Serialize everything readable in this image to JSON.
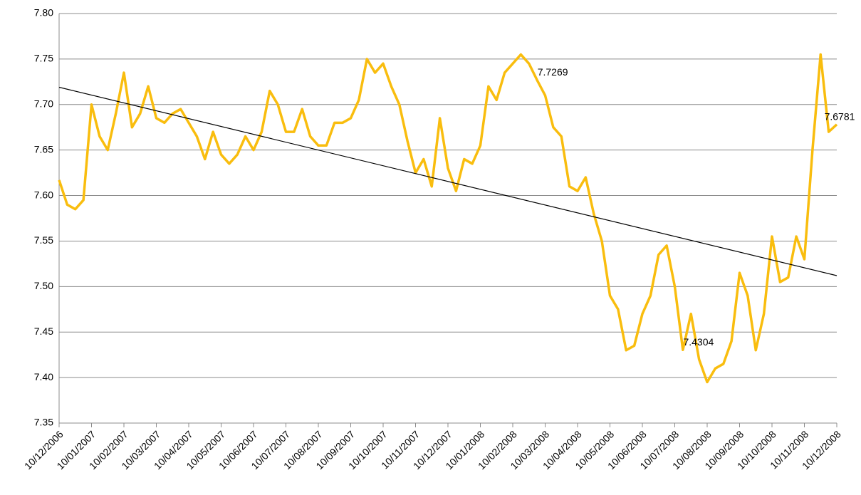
{
  "chart_data": {
    "type": "line",
    "categories": [
      "10/12/2006",
      null,
      null,
      null,
      "10/01/2007",
      null,
      null,
      null,
      "10/02/2007",
      null,
      null,
      null,
      "10/03/2007",
      null,
      null,
      null,
      "10/04/2007",
      null,
      null,
      null,
      "10/05/2007",
      null,
      null,
      null,
      "10/06/2007",
      null,
      null,
      null,
      "10/07/2007",
      null,
      null,
      null,
      "10/08/2007",
      null,
      null,
      null,
      "10/09/2007",
      null,
      null,
      null,
      "10/10/2007",
      null,
      null,
      null,
      "10/11/2007",
      null,
      null,
      null,
      "10/12/2007",
      null,
      null,
      null,
      "10/01/2008",
      null,
      null,
      null,
      "10/02/2008",
      null,
      null,
      null,
      "10/03/2008",
      null,
      null,
      null,
      "10/04/2008",
      null,
      null,
      null,
      "10/05/2008",
      null,
      null,
      null,
      "10/06/2008",
      null,
      null,
      null,
      "10/07/2008",
      null,
      null,
      null,
      "10/08/2008",
      null,
      null,
      null,
      "10/09/2008",
      null,
      null,
      null,
      "10/10/2008",
      null,
      null,
      null,
      "10/11/2008",
      null,
      null,
      null,
      "10/12/2008"
    ],
    "values": [
      7.617,
      7.59,
      7.585,
      7.595,
      7.7,
      7.665,
      7.65,
      7.69,
      7.735,
      7.675,
      7.69,
      7.72,
      7.685,
      7.68,
      7.69,
      7.695,
      7.68,
      7.665,
      7.64,
      7.67,
      7.645,
      7.635,
      7.645,
      7.665,
      7.65,
      7.67,
      7.715,
      7.7,
      7.67,
      7.67,
      7.695,
      7.665,
      7.655,
      7.655,
      7.68,
      7.68,
      7.685,
      7.705,
      7.75,
      7.735,
      7.745,
      7.72,
      7.7,
      7.66,
      7.625,
      7.64,
      7.61,
      7.685,
      7.63,
      7.605,
      7.64,
      7.635,
      7.655,
      7.72,
      7.705,
      7.735,
      7.745,
      7.755,
      7.745,
      7.7269,
      7.71,
      7.675,
      7.665,
      7.61,
      7.605,
      7.62,
      7.58,
      7.55,
      7.49,
      7.475,
      7.43,
      7.435,
      7.47,
      7.49,
      7.535,
      7.545,
      7.5,
      7.4304,
      7.47,
      7.42,
      7.395,
      7.41,
      7.415,
      7.44,
      7.515,
      7.49,
      7.43,
      7.47,
      7.555,
      7.505,
      7.51,
      7.555,
      7.53,
      7.65,
      7.755,
      7.67,
      7.6781
    ],
    "color": "#f9bd0e",
    "trendline": [
      7.719,
      7.512
    ],
    "trendline_color": "#000000",
    "annotations": [
      {
        "index": 59,
        "value": 7.7269
      },
      {
        "index": 77,
        "value": 7.4304
      },
      {
        "index": 96,
        "value": 7.6781
      }
    ],
    "ylim": [
      7.35,
      7.8
    ],
    "yticks": [
      7.35,
      {
        "value": 7.4,
        "label": "7.40"
      },
      7.45,
      {
        "value": 7.5,
        "label": "7.50"
      },
      7.55,
      {
        "value": 7.6,
        "label": "7.60"
      },
      7.65,
      {
        "value": 7.7,
        "label": "7.70"
      },
      7.75,
      {
        "value": 7.8,
        "label": "7.80"
      }
    ],
    "grid": true
  }
}
